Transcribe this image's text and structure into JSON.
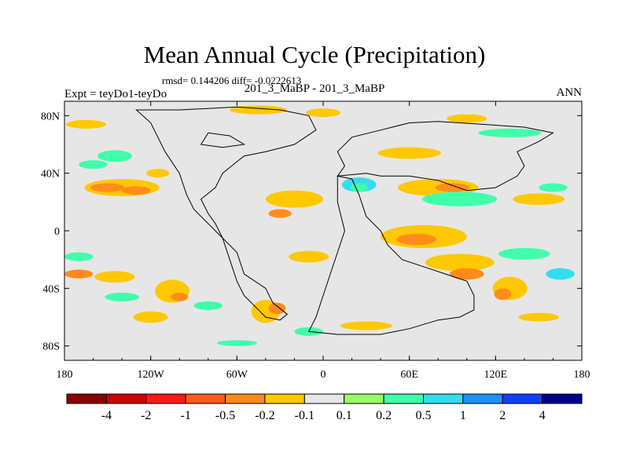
{
  "chart_data": {
    "type": "heatmap",
    "title": "Mean Annual Cycle (Precipitation)",
    "stats_text": "rmsd= 0.144206 diff= -0.0222613",
    "subtitle": "201_3_MaBP - 201_3_MaBP",
    "experiment": "Expt = teyDo1-teyDo",
    "season": "ANN",
    "x_range": [
      -180,
      180
    ],
    "y_range": [
      -90,
      90
    ],
    "x_ticks": [
      {
        "value": -180,
        "label": "180"
      },
      {
        "value": -120,
        "label": "120W"
      },
      {
        "value": -60,
        "label": "60W"
      },
      {
        "value": 0,
        "label": "0"
      },
      {
        "value": 60,
        "label": "60E"
      },
      {
        "value": 120,
        "label": "120E"
      },
      {
        "value": 180,
        "label": "180"
      }
    ],
    "y_ticks": [
      {
        "value": 80,
        "label": "80N"
      },
      {
        "value": 40,
        "label": "40N"
      },
      {
        "value": 0,
        "label": "0"
      },
      {
        "value": -40,
        "label": "40S"
      },
      {
        "value": -80,
        "label": "80S"
      }
    ],
    "colorbar": {
      "colors": [
        "#8b0000",
        "#cc0000",
        "#ff1a1a",
        "#ff5a1a",
        "#ff8c1a",
        "#ffc800",
        "#e6e6e6",
        "#99ff66",
        "#40ffaa",
        "#33ddee",
        "#1e90ff",
        "#1040ff",
        "#00008b"
      ],
      "labels": [
        "-4",
        "-2",
        "-1",
        "-0.5",
        "-0.2",
        "-0.1",
        "0.1",
        "0.2",
        "0.5",
        "1",
        "2",
        "4"
      ]
    },
    "anomaly_patches": [
      {
        "lon": -165,
        "lat": 74,
        "rlon": 14,
        "rlat": 3,
        "level": -0.2
      },
      {
        "lon": -145,
        "lat": 52,
        "rlon": 12,
        "rlat": 4,
        "level": 0.2
      },
      {
        "lon": -160,
        "lat": 46,
        "rlon": 10,
        "rlat": 3,
        "level": 0.2
      },
      {
        "lon": -140,
        "lat": 30,
        "rlon": 26,
        "rlat": 6,
        "level": -0.2
      },
      {
        "lon": -150,
        "lat": 30,
        "rlon": 12,
        "rlat": 3,
        "level": -0.5
      },
      {
        "lon": -130,
        "lat": 28,
        "rlon": 10,
        "rlat": 3,
        "level": -0.5
      },
      {
        "lon": -115,
        "lat": 40,
        "rlon": 8,
        "rlat": 3,
        "level": -0.2
      },
      {
        "lon": -170,
        "lat": -18,
        "rlon": 10,
        "rlat": 3,
        "level": 0.2
      },
      {
        "lon": -170,
        "lat": -30,
        "rlon": 10,
        "rlat": 3,
        "level": -0.5
      },
      {
        "lon": -145,
        "lat": -32,
        "rlon": 14,
        "rlat": 4,
        "level": -0.2
      },
      {
        "lon": -140,
        "lat": -46,
        "rlon": 12,
        "rlat": 3,
        "level": 0.2
      },
      {
        "lon": -105,
        "lat": -42,
        "rlon": 12,
        "rlat": 8,
        "level": -0.2
      },
      {
        "lon": -100,
        "lat": -46,
        "rlon": 6,
        "rlat": 3,
        "level": -0.5
      },
      {
        "lon": -120,
        "lat": -60,
        "rlon": 12,
        "rlat": 4,
        "level": -0.2
      },
      {
        "lon": -80,
        "lat": -52,
        "rlon": 10,
        "rlat": 3,
        "level": 0.2
      },
      {
        "lon": -40,
        "lat": -56,
        "rlon": 10,
        "rlat": 8,
        "level": -0.2
      },
      {
        "lon": -32,
        "lat": -54,
        "rlon": 6,
        "rlat": 4,
        "level": -0.5
      },
      {
        "lon": -20,
        "lat": 22,
        "rlon": 20,
        "rlat": 6,
        "level": -0.2
      },
      {
        "lon": -30,
        "lat": 12,
        "rlon": 8,
        "rlat": 3,
        "level": -0.5
      },
      {
        "lon": -45,
        "lat": 84,
        "rlon": 20,
        "rlat": 3,
        "level": -0.2
      },
      {
        "lon": 0,
        "lat": 82,
        "rlon": 12,
        "rlat": 3,
        "level": -0.2
      },
      {
        "lon": -10,
        "lat": -18,
        "rlon": 14,
        "rlat": 4,
        "level": -0.2
      },
      {
        "lon": 25,
        "lat": 32,
        "rlon": 12,
        "rlat": 5,
        "level": 0.5
      },
      {
        "lon": 25,
        "lat": 30,
        "rlon": 6,
        "rlat": 3,
        "level": 0.2
      },
      {
        "lon": 60,
        "lat": 54,
        "rlon": 22,
        "rlat": 4,
        "level": -0.2
      },
      {
        "lon": 80,
        "lat": 30,
        "rlon": 28,
        "rlat": 6,
        "level": -0.2
      },
      {
        "lon": 90,
        "lat": 30,
        "rlon": 12,
        "rlat": 3,
        "level": -0.5
      },
      {
        "lon": 95,
        "lat": 22,
        "rlon": 26,
        "rlat": 5,
        "level": 0.2
      },
      {
        "lon": 70,
        "lat": -4,
        "rlon": 30,
        "rlat": 8,
        "level": -0.2
      },
      {
        "lon": 65,
        "lat": -6,
        "rlon": 14,
        "rlat": 4,
        "level": -0.5
      },
      {
        "lon": 95,
        "lat": -22,
        "rlon": 24,
        "rlat": 6,
        "level": -0.2
      },
      {
        "lon": 100,
        "lat": -30,
        "rlon": 12,
        "rlat": 4,
        "level": -0.5
      },
      {
        "lon": 140,
        "lat": -16,
        "rlon": 18,
        "rlat": 4,
        "level": 0.2
      },
      {
        "lon": 130,
        "lat": -40,
        "rlon": 12,
        "rlat": 8,
        "level": -0.2
      },
      {
        "lon": 125,
        "lat": -44,
        "rlon": 6,
        "rlat": 4,
        "level": -0.5
      },
      {
        "lon": 165,
        "lat": -30,
        "rlon": 10,
        "rlat": 4,
        "level": 0.5
      },
      {
        "lon": 150,
        "lat": 22,
        "rlon": 18,
        "rlat": 4,
        "level": -0.2
      },
      {
        "lon": 160,
        "lat": 30,
        "rlon": 10,
        "rlat": 3,
        "level": 0.2
      },
      {
        "lon": 130,
        "lat": 68,
        "rlon": 22,
        "rlat": 3,
        "level": 0.2
      },
      {
        "lon": 100,
        "lat": 78,
        "rlon": 14,
        "rlat": 3,
        "level": -0.2
      },
      {
        "lon": 30,
        "lat": -66,
        "rlon": 18,
        "rlat": 3,
        "level": -0.2
      },
      {
        "lon": -10,
        "lat": -70,
        "rlon": 10,
        "rlat": 3,
        "level": 0.2
      },
      {
        "lon": 150,
        "lat": -60,
        "rlon": 14,
        "rlat": 3,
        "level": -0.2
      },
      {
        "lon": -60,
        "lat": -78,
        "rlon": 14,
        "rlat": 2,
        "level": 0.2
      }
    ],
    "continent_outlines": [
      [
        [
          -130,
          84
        ],
        [
          -100,
          84
        ],
        [
          -60,
          86
        ],
        [
          -30,
          84
        ],
        [
          -10,
          80
        ],
        [
          -5,
          70
        ],
        [
          -20,
          60
        ],
        [
          -40,
          55
        ],
        [
          -55,
          52
        ],
        [
          -60,
          48
        ],
        [
          -70,
          40
        ],
        [
          -75,
          30
        ],
        [
          -85,
          22
        ],
        [
          -80,
          12
        ],
        [
          -75,
          5
        ],
        [
          -70,
          -5
        ],
        [
          -65,
          -20
        ],
        [
          -60,
          -35
        ],
        [
          -55,
          -45
        ],
        [
          -45,
          -55
        ],
        [
          -40,
          -60
        ],
        [
          -30,
          -62
        ],
        [
          -25,
          -58
        ],
        [
          -35,
          -50
        ],
        [
          -40,
          -40
        ],
        [
          -55,
          -30
        ],
        [
          -60,
          -15
        ],
        [
          -75,
          0
        ],
        [
          -90,
          15
        ],
        [
          -95,
          25
        ],
        [
          -100,
          40
        ],
        [
          -110,
          55
        ],
        [
          -115,
          65
        ],
        [
          -120,
          75
        ],
        [
          -130,
          84
        ]
      ],
      [
        [
          10,
          38
        ],
        [
          30,
          40
        ],
        [
          40,
          38
        ],
        [
          60,
          38
        ],
        [
          80,
          35
        ],
        [
          100,
          28
        ],
        [
          120,
          30
        ],
        [
          135,
          38
        ],
        [
          140,
          45
        ],
        [
          135,
          55
        ],
        [
          150,
          62
        ],
        [
          160,
          68
        ],
        [
          140,
          72
        ],
        [
          110,
          74
        ],
        [
          80,
          76
        ],
        [
          60,
          75
        ],
        [
          40,
          70
        ],
        [
          20,
          65
        ],
        [
          10,
          55
        ],
        [
          15,
          45
        ],
        [
          10,
          38
        ]
      ],
      [
        [
          10,
          38
        ],
        [
          20,
          36
        ],
        [
          25,
          25
        ],
        [
          30,
          10
        ],
        [
          40,
          0
        ],
        [
          45,
          -10
        ],
        [
          55,
          -20
        ],
        [
          70,
          -25
        ],
        [
          85,
          -30
        ],
        [
          100,
          -35
        ],
        [
          105,
          -45
        ],
        [
          105,
          -55
        ],
        [
          95,
          -60
        ],
        [
          80,
          -62
        ],
        [
          60,
          -68
        ],
        [
          40,
          -72
        ],
        [
          10,
          -72
        ],
        [
          -10,
          -70
        ],
        [
          -5,
          -60
        ],
        [
          0,
          -45
        ],
        [
          5,
          -30
        ],
        [
          10,
          -15
        ],
        [
          15,
          0
        ],
        [
          10,
          20
        ],
        [
          10,
          38
        ]
      ],
      [
        [
          -85,
          60
        ],
        [
          -80,
          68
        ],
        [
          -65,
          66
        ],
        [
          -55,
          60
        ],
        [
          -70,
          58
        ],
        [
          -85,
          60
        ]
      ]
    ]
  }
}
